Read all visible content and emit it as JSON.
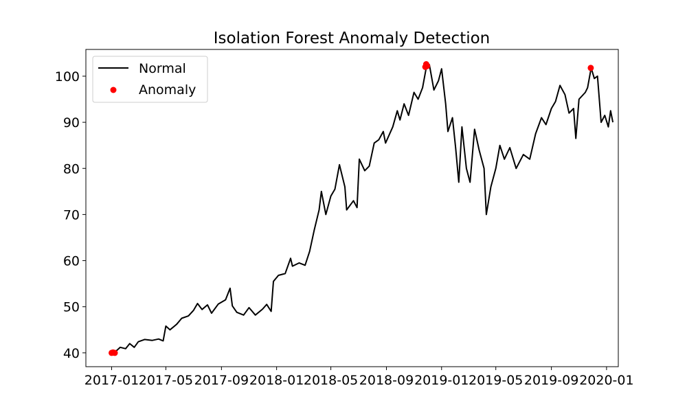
{
  "chart_data": {
    "type": "line",
    "title": "Isolation Forest Anomaly Detection",
    "xlabel": "",
    "ylabel": "",
    "xlim": [
      "2016-11-05",
      "2020-01-27"
    ],
    "ylim": [
      37,
      105.8
    ],
    "x_ticks": [
      "2017-01",
      "2017-05",
      "2017-09",
      "2018-01",
      "2018-05",
      "2018-09",
      "2019-01",
      "2019-05",
      "2019-09",
      "2020-01"
    ],
    "y_ticks": [
      40,
      50,
      60,
      70,
      80,
      90,
      100
    ],
    "grid": false,
    "legend": {
      "placement": "upper-left"
    },
    "series": [
      {
        "name": "Normal",
        "kind": "line",
        "color": "#000000",
        "points": [
          [
            "2017-01-01",
            40.0
          ],
          [
            "2017-01-10",
            40.3
          ],
          [
            "2017-01-20",
            41.2
          ],
          [
            "2017-02-01",
            40.9
          ],
          [
            "2017-02-10",
            42.0
          ],
          [
            "2017-02-20",
            41.2
          ],
          [
            "2017-03-01",
            42.4
          ],
          [
            "2017-03-15",
            42.9
          ],
          [
            "2017-04-01",
            42.7
          ],
          [
            "2017-04-15",
            43.0
          ],
          [
            "2017-04-25",
            42.6
          ],
          [
            "2017-05-01",
            45.8
          ],
          [
            "2017-05-10",
            45.0
          ],
          [
            "2017-05-25",
            46.2
          ],
          [
            "2017-06-05",
            47.5
          ],
          [
            "2017-06-20",
            48.0
          ],
          [
            "2017-07-01",
            49.2
          ],
          [
            "2017-07-10",
            50.7
          ],
          [
            "2017-07-20",
            49.4
          ],
          [
            "2017-08-01",
            50.4
          ],
          [
            "2017-08-10",
            48.6
          ],
          [
            "2017-08-25",
            50.6
          ],
          [
            "2017-09-10",
            51.5
          ],
          [
            "2017-09-20",
            54.0
          ],
          [
            "2017-09-25",
            50.2
          ],
          [
            "2017-10-05",
            48.8
          ],
          [
            "2017-10-20",
            48.2
          ],
          [
            "2017-11-01",
            49.8
          ],
          [
            "2017-11-15",
            48.2
          ],
          [
            "2017-12-01",
            49.5
          ],
          [
            "2017-12-10",
            50.5
          ],
          [
            "2017-12-20",
            49.0
          ],
          [
            "2017-12-25",
            55.5
          ],
          [
            "2018-01-05",
            56.8
          ],
          [
            "2018-01-20",
            57.2
          ],
          [
            "2018-02-01",
            60.5
          ],
          [
            "2018-02-05",
            58.8
          ],
          [
            "2018-02-20",
            59.5
          ],
          [
            "2018-03-05",
            59.0
          ],
          [
            "2018-03-15",
            62.0
          ],
          [
            "2018-03-25",
            66.5
          ],
          [
            "2018-04-05",
            71.0
          ],
          [
            "2018-04-10",
            75.0
          ],
          [
            "2018-04-20",
            70.0
          ],
          [
            "2018-05-01",
            74.0
          ],
          [
            "2018-05-10",
            75.5
          ],
          [
            "2018-05-20",
            80.8
          ],
          [
            "2018-06-01",
            76.0
          ],
          [
            "2018-06-05",
            71.0
          ],
          [
            "2018-06-20",
            73.0
          ],
          [
            "2018-06-28",
            71.5
          ],
          [
            "2018-07-03",
            82.0
          ],
          [
            "2018-07-15",
            79.5
          ],
          [
            "2018-07-25",
            80.5
          ],
          [
            "2018-08-05",
            85.5
          ],
          [
            "2018-08-15",
            86.2
          ],
          [
            "2018-08-25",
            88.0
          ],
          [
            "2018-08-30",
            85.5
          ],
          [
            "2018-09-15",
            89.0
          ],
          [
            "2018-09-25",
            92.5
          ],
          [
            "2018-10-01",
            90.5
          ],
          [
            "2018-10-10",
            94.0
          ],
          [
            "2018-10-20",
            91.5
          ],
          [
            "2018-11-01",
            96.5
          ],
          [
            "2018-11-10",
            95.0
          ],
          [
            "2018-11-20",
            97.5
          ],
          [
            "2018-11-28",
            101.8
          ],
          [
            "2018-12-05",
            102.5
          ],
          [
            "2018-12-15",
            97.0
          ],
          [
            "2018-12-25",
            99.0
          ],
          [
            "2019-01-01",
            101.6
          ],
          [
            "2019-01-10",
            94.0
          ],
          [
            "2019-01-15",
            88.0
          ],
          [
            "2019-01-25",
            91.0
          ],
          [
            "2019-02-01",
            84.5
          ],
          [
            "2019-02-08",
            77.0
          ],
          [
            "2019-02-15",
            89.0
          ],
          [
            "2019-02-25",
            80.0
          ],
          [
            "2019-03-05",
            77.0
          ],
          [
            "2019-03-15",
            88.5
          ],
          [
            "2019-03-25",
            84.0
          ],
          [
            "2019-04-05",
            80.0
          ],
          [
            "2019-04-10",
            70.0
          ],
          [
            "2019-04-20",
            76.0
          ],
          [
            "2019-05-01",
            80.0
          ],
          [
            "2019-05-10",
            85.0
          ],
          [
            "2019-05-20",
            82.0
          ],
          [
            "2019-06-01",
            84.5
          ],
          [
            "2019-06-15",
            80.0
          ],
          [
            "2019-07-01",
            83.0
          ],
          [
            "2019-07-15",
            82.0
          ],
          [
            "2019-07-28",
            87.5
          ],
          [
            "2019-08-10",
            91.0
          ],
          [
            "2019-08-20",
            89.5
          ],
          [
            "2019-09-01",
            93.0
          ],
          [
            "2019-09-10",
            94.5
          ],
          [
            "2019-09-20",
            98.0
          ],
          [
            "2019-10-01",
            96.0
          ],
          [
            "2019-10-10",
            92.0
          ],
          [
            "2019-10-20",
            93.0
          ],
          [
            "2019-10-25",
            86.5
          ],
          [
            "2019-11-01",
            95.0
          ],
          [
            "2019-11-15",
            96.5
          ],
          [
            "2019-11-20",
            97.5
          ],
          [
            "2019-11-28",
            101.8
          ],
          [
            "2019-12-05",
            99.5
          ],
          [
            "2019-12-12",
            100.0
          ],
          [
            "2019-12-20",
            90.0
          ],
          [
            "2019-12-28",
            91.5
          ],
          [
            "2020-01-05",
            89.0
          ],
          [
            "2020-01-10",
            92.5
          ],
          [
            "2020-01-15",
            90.0
          ]
        ]
      },
      {
        "name": "Anomaly",
        "kind": "scatter",
        "color": "#ff0000",
        "points": [
          [
            "2017-01-01",
            40.0
          ],
          [
            "2017-01-04",
            40.1
          ],
          [
            "2017-01-08",
            40.0
          ],
          [
            "2018-11-26",
            102.0
          ],
          [
            "2018-11-28",
            102.6
          ],
          [
            "2018-11-30",
            102.2
          ],
          [
            "2019-11-27",
            101.8
          ]
        ]
      }
    ]
  }
}
